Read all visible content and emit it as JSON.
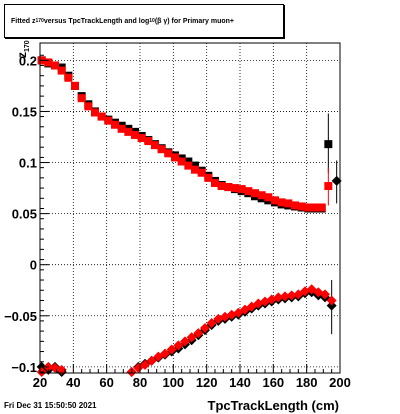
{
  "title": {
    "prefix": "Fitted  z",
    "sub1": "170",
    "mid": "  versus TpcTrackLength and log",
    "sub2": "10",
    "suffix": " (β  γ) for Primary muon+"
  },
  "timestamp": "Fri Dec 31 15:50:50 2021",
  "chart_data": {
    "type": "scatter",
    "xlabel": "TpcTrackLength (cm)",
    "ylabel": "z",
    "ylabel_sub": "170",
    "xlim": [
      20,
      200
    ],
    "ylim": [
      -0.106,
      0.217
    ],
    "xticks": [
      20,
      40,
      60,
      80,
      100,
      120,
      140,
      160,
      180,
      200
    ],
    "yticks": [
      -0.1,
      -0.05,
      0,
      0.05,
      0.1,
      0.15,
      0.2
    ],
    "ytick_labels": [
      "−0.1",
      "−0.05",
      "0",
      "0.05",
      "0.1",
      "0.15",
      "0.2"
    ],
    "grid": true,
    "colors": {
      "series_black": "#000000",
      "series_red": "#ff0000",
      "grid": "#000000"
    },
    "series": [
      {
        "marker": "square",
        "color": "#000000",
        "points": [
          [
            21,
            0.2
          ],
          [
            25,
            0.197
          ],
          [
            29,
            0.195
          ],
          [
            33,
            0.193
          ],
          [
            37,
            0.185
          ],
          [
            41,
            0.175
          ],
          [
            45,
            0.165
          ],
          [
            49,
            0.157
          ],
          [
            53,
            0.15
          ],
          [
            57,
            0.145
          ],
          [
            61,
            0.142
          ],
          [
            65,
            0.139
          ],
          [
            69,
            0.136
          ],
          [
            73,
            0.133
          ],
          [
            77,
            0.13
          ],
          [
            81,
            0.126
          ],
          [
            85,
            0.122
          ],
          [
            89,
            0.118
          ],
          [
            93,
            0.114
          ],
          [
            97,
            0.11
          ],
          [
            101,
            0.107
          ],
          [
            105,
            0.104
          ],
          [
            109,
            0.101
          ],
          [
            113,
            0.097
          ],
          [
            117,
            0.092
          ],
          [
            121,
            0.087
          ],
          [
            125,
            0.082
          ],
          [
            129,
            0.078
          ],
          [
            133,
            0.076
          ],
          [
            137,
            0.074
          ],
          [
            141,
            0.072
          ],
          [
            145,
            0.07
          ],
          [
            149,
            0.067
          ],
          [
            153,
            0.065
          ],
          [
            157,
            0.063
          ],
          [
            161,
            0.061
          ],
          [
            165,
            0.059
          ],
          [
            169,
            0.058
          ],
          [
            173,
            0.057
          ],
          [
            177,
            0.056
          ],
          [
            181,
            0.055
          ],
          [
            185,
            0.055
          ],
          [
            189,
            0.055
          ],
          [
            193,
            0.118
          ]
        ],
        "errors": [
          [
            193,
            0.09,
            0.148
          ]
        ]
      },
      {
        "marker": "square",
        "color": "#ff0000",
        "points": [
          [
            21,
            0.2
          ],
          [
            25,
            0.198
          ],
          [
            29,
            0.195
          ],
          [
            33,
            0.19
          ],
          [
            37,
            0.183
          ],
          [
            41,
            0.175
          ],
          [
            45,
            0.163
          ],
          [
            49,
            0.155
          ],
          [
            53,
            0.149
          ],
          [
            57,
            0.145
          ],
          [
            61,
            0.141
          ],
          [
            65,
            0.137
          ],
          [
            69,
            0.133
          ],
          [
            73,
            0.13
          ],
          [
            77,
            0.127
          ],
          [
            81,
            0.124
          ],
          [
            85,
            0.121
          ],
          [
            89,
            0.117
          ],
          [
            93,
            0.113
          ],
          [
            97,
            0.109
          ],
          [
            101,
            0.105
          ],
          [
            105,
            0.101
          ],
          [
            109,
            0.097
          ],
          [
            113,
            0.093
          ],
          [
            117,
            0.09
          ],
          [
            121,
            0.085
          ],
          [
            125,
            0.08
          ],
          [
            129,
            0.077
          ],
          [
            133,
            0.076
          ],
          [
            137,
            0.075
          ],
          [
            141,
            0.074
          ],
          [
            145,
            0.072
          ],
          [
            149,
            0.07
          ],
          [
            153,
            0.068
          ],
          [
            157,
            0.066
          ],
          [
            161,
            0.063
          ],
          [
            165,
            0.061
          ],
          [
            169,
            0.06
          ],
          [
            173,
            0.058
          ],
          [
            177,
            0.057
          ],
          [
            181,
            0.056
          ],
          [
            185,
            0.056
          ],
          [
            189,
            0.056
          ],
          [
            193,
            0.077
          ]
        ],
        "errors": [
          [
            193,
            0.058,
            0.095
          ]
        ]
      },
      {
        "marker": "diamond",
        "color": "#000000",
        "points": [
          [
            21,
            -0.1
          ],
          [
            25,
            -0.103
          ],
          [
            29,
            -0.1
          ],
          [
            33,
            -0.105
          ],
          [
            75,
            -0.105
          ],
          [
            79,
            -0.1
          ],
          [
            83,
            -0.097
          ],
          [
            87,
            -0.094
          ],
          [
            91,
            -0.091
          ],
          [
            95,
            -0.088
          ],
          [
            99,
            -0.085
          ],
          [
            103,
            -0.082
          ],
          [
            107,
            -0.078
          ],
          [
            111,
            -0.074
          ],
          [
            115,
            -0.069
          ],
          [
            119,
            -0.064
          ],
          [
            123,
            -0.059
          ],
          [
            127,
            -0.055
          ],
          [
            131,
            -0.053
          ],
          [
            135,
            -0.051
          ],
          [
            139,
            -0.049
          ],
          [
            143,
            -0.046
          ],
          [
            147,
            -0.043
          ],
          [
            151,
            -0.04
          ],
          [
            155,
            -0.038
          ],
          [
            159,
            -0.036
          ],
          [
            163,
            -0.034
          ],
          [
            167,
            -0.033
          ],
          [
            171,
            -0.032
          ],
          [
            175,
            -0.031
          ],
          [
            179,
            -0.028
          ],
          [
            183,
            -0.027
          ],
          [
            187,
            -0.03
          ],
          [
            191,
            -0.032
          ],
          [
            195,
            -0.04
          ],
          [
            198,
            0.082
          ]
        ],
        "errors": [
          [
            195,
            -0.068,
            -0.015
          ],
          [
            198,
            0.06,
            0.102
          ]
        ]
      },
      {
        "marker": "diamond",
        "color": "#ff0000",
        "points": [
          [
            21,
            -0.105
          ],
          [
            25,
            -0.1
          ],
          [
            29,
            -0.101
          ],
          [
            33,
            -0.103
          ],
          [
            75,
            -0.105
          ],
          [
            79,
            -0.101
          ],
          [
            83,
            -0.098
          ],
          [
            87,
            -0.094
          ],
          [
            91,
            -0.09
          ],
          [
            95,
            -0.087
          ],
          [
            99,
            -0.083
          ],
          [
            103,
            -0.079
          ],
          [
            107,
            -0.075
          ],
          [
            111,
            -0.071
          ],
          [
            115,
            -0.067
          ],
          [
            119,
            -0.062
          ],
          [
            123,
            -0.057
          ],
          [
            127,
            -0.053
          ],
          [
            131,
            -0.051
          ],
          [
            135,
            -0.049
          ],
          [
            139,
            -0.047
          ],
          [
            143,
            -0.044
          ],
          [
            147,
            -0.041
          ],
          [
            151,
            -0.038
          ],
          [
            155,
            -0.036
          ],
          [
            159,
            -0.034
          ],
          [
            163,
            -0.032
          ],
          [
            167,
            -0.031
          ],
          [
            171,
            -0.03
          ],
          [
            175,
            -0.029
          ],
          [
            179,
            -0.026
          ],
          [
            183,
            -0.024
          ],
          [
            187,
            -0.027
          ],
          [
            191,
            -0.029
          ],
          [
            195,
            -0.035
          ]
        ],
        "errors": []
      }
    ]
  }
}
